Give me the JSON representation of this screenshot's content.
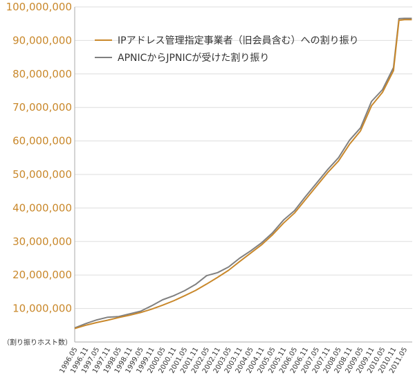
{
  "chart_data": {
    "type": "line",
    "title": "",
    "xlabel": "",
    "ylabel": "（割り振りホスト数）",
    "ylim": [
      0,
      100000000
    ],
    "yticks": [
      "10,000,000",
      "20,000,000",
      "30,000,000",
      "40,000,000",
      "50,000,000",
      "60,000,000",
      "70,000,000",
      "80,000,000",
      "90,000,000",
      "100,000,000"
    ],
    "ytick_values": [
      10000000,
      20000000,
      30000000,
      40000000,
      50000000,
      60000000,
      70000000,
      80000000,
      90000000,
      100000000
    ],
    "x_ticks": [
      "1996.05",
      "1996.11",
      "1997.05",
      "1997.11",
      "1998.05",
      "1998.11",
      "1999.05",
      "1999.11",
      "2000.05",
      "2000.11",
      "2001.05",
      "2001.11",
      "2002.05",
      "2002.11",
      "2003.05",
      "2003.11",
      "2004.05",
      "2004.11",
      "2005.05",
      "2005.11",
      "2006.05",
      "2006.11",
      "2007.05",
      "2007.11",
      "2008.05",
      "2008.11",
      "2009.05",
      "2009.11",
      "2010.05",
      "2010.11",
      "2011.05"
    ],
    "grid": true,
    "legend_position": "top-left",
    "series": [
      {
        "name": "IPアドレス管理指定事業者（旧会員含む）への割り振り",
        "color": "#c9882b",
        "points": [
          [
            "1996.05",
            4000000
          ],
          [
            "1996.11",
            5000000
          ],
          [
            "1997.05",
            5800000
          ],
          [
            "1997.11",
            6500000
          ],
          [
            "1998.05",
            7300000
          ],
          [
            "1998.11",
            8000000
          ],
          [
            "1999.05",
            8800000
          ],
          [
            "1999.11",
            9800000
          ],
          [
            "2000.05",
            11000000
          ],
          [
            "2000.11",
            12300000
          ],
          [
            "2001.05",
            13800000
          ],
          [
            "2001.11",
            15400000
          ],
          [
            "2002.05",
            17300000
          ],
          [
            "2002.11",
            19300000
          ],
          [
            "2003.05",
            21400000
          ],
          [
            "2003.11",
            24000000
          ],
          [
            "2004.05",
            26500000
          ],
          [
            "2004.11",
            29000000
          ],
          [
            "2005.05",
            32000000
          ],
          [
            "2005.11",
            35500000
          ],
          [
            "2006.05",
            38500000
          ],
          [
            "2006.11",
            42500000
          ],
          [
            "2007.05",
            46500000
          ],
          [
            "2007.11",
            50500000
          ],
          [
            "2008.05",
            54000000
          ],
          [
            "2008.11",
            59000000
          ],
          [
            "2009.05",
            63000000
          ],
          [
            "2009.11",
            70500000
          ],
          [
            "2010.05",
            74500000
          ],
          [
            "2010.11",
            81000000
          ],
          [
            "2011.02",
            96000000
          ],
          [
            "2011.05",
            96200000
          ],
          [
            "2011.09",
            96200000
          ]
        ]
      },
      {
        "name": "APNICからJPNICが受けた割り振り",
        "color": "#808080",
        "points": [
          [
            "1996.05",
            4200000
          ],
          [
            "1996.11",
            5500000
          ],
          [
            "1997.05",
            6600000
          ],
          [
            "1997.11",
            7400000
          ],
          [
            "1998.05",
            7600000
          ],
          [
            "1998.11",
            8400000
          ],
          [
            "1999.05",
            9200000
          ],
          [
            "1999.11",
            10800000
          ],
          [
            "2000.05",
            12600000
          ],
          [
            "2000.11",
            13800000
          ],
          [
            "2001.05",
            15300000
          ],
          [
            "2001.11",
            17200000
          ],
          [
            "2002.05",
            19800000
          ],
          [
            "2002.11",
            20700000
          ],
          [
            "2003.05",
            22400000
          ],
          [
            "2003.11",
            25000000
          ],
          [
            "2004.05",
            27200000
          ],
          [
            "2004.11",
            29600000
          ],
          [
            "2005.05",
            32600000
          ],
          [
            "2005.11",
            36400000
          ],
          [
            "2006.05",
            39200000
          ],
          [
            "2006.11",
            43400000
          ],
          [
            "2007.05",
            47400000
          ],
          [
            "2007.11",
            51400000
          ],
          [
            "2008.05",
            55000000
          ],
          [
            "2008.11",
            60200000
          ],
          [
            "2009.05",
            63900000
          ],
          [
            "2009.11",
            71800000
          ],
          [
            "2010.05",
            75300000
          ],
          [
            "2010.11",
            81900000
          ],
          [
            "2011.02",
            96500000
          ],
          [
            "2011.05",
            96600000
          ],
          [
            "2011.09",
            96600000
          ]
        ]
      }
    ]
  }
}
